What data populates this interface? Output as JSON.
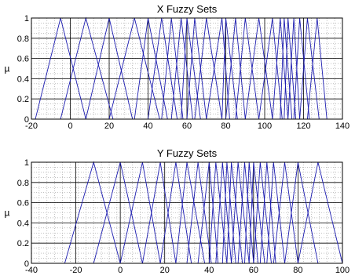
{
  "chart_data": [
    {
      "type": "line",
      "title": "X Fuzzy Sets",
      "ylabel": "µ",
      "xlim": [
        -20,
        140
      ],
      "ylim": [
        0,
        1
      ],
      "xticks": [
        "-20",
        "0",
        "20",
        "40",
        "60",
        "80",
        "100",
        "120",
        "140"
      ],
      "yticks": [
        "0",
        "0.2",
        "0.4",
        "0.6",
        "0.8",
        "1"
      ],
      "grid": "major solid, minor dotted",
      "line_color": "#1c1cb0",
      "series_description": "triangular membership functions, each given as [left foot, peak, right foot]",
      "triangles": [
        [
          -18,
          -5,
          8
        ],
        [
          -5,
          8,
          22
        ],
        [
          8,
          20,
          32
        ],
        [
          20,
          33,
          46
        ],
        [
          33,
          40,
          50
        ],
        [
          40,
          47,
          55
        ],
        [
          47,
          52,
          58
        ],
        [
          52,
          57,
          63
        ],
        [
          57,
          60,
          67
        ],
        [
          60,
          64,
          70
        ],
        [
          64,
          70,
          78
        ],
        [
          70,
          78,
          82
        ],
        [
          78,
          80,
          86
        ],
        [
          80,
          85,
          90
        ],
        [
          85,
          90,
          97
        ],
        [
          90,
          97,
          104
        ],
        [
          97,
          104,
          109
        ],
        [
          104,
          108,
          112
        ],
        [
          108,
          110,
          114
        ],
        [
          110,
          112,
          116
        ],
        [
          112,
          115,
          118
        ],
        [
          115,
          118,
          123
        ],
        [
          118,
          122,
          128
        ],
        [
          122,
          127,
          132
        ]
      ]
    },
    {
      "type": "line",
      "title": "Y Fuzzy Sets",
      "ylabel": "µ",
      "xlim": [
        -40,
        100
      ],
      "ylim": [
        0,
        1
      ],
      "xticks": [
        "-40",
        "-20",
        "0",
        "20",
        "40",
        "60",
        "80",
        "100"
      ],
      "yticks": [
        "0",
        "0.2",
        "0.4",
        "0.6",
        "0.8",
        "1"
      ],
      "grid": "major solid, minor dotted",
      "line_color": "#1c1cb0",
      "series_description": "triangular membership functions, each given as [left foot, peak, right foot]",
      "triangles": [
        [
          -25,
          -12,
          0
        ],
        [
          -12,
          0,
          10
        ],
        [
          0,
          10,
          18
        ],
        [
          10,
          18,
          25
        ],
        [
          18,
          25,
          32
        ],
        [
          25,
          30,
          38
        ],
        [
          30,
          35,
          41
        ],
        [
          35,
          40,
          44
        ],
        [
          40,
          43,
          48
        ],
        [
          43,
          46,
          50
        ],
        [
          46,
          48,
          52
        ],
        [
          48,
          50,
          55
        ],
        [
          50,
          53,
          58
        ],
        [
          53,
          56,
          60
        ],
        [
          56,
          58,
          62
        ],
        [
          58,
          60,
          65
        ],
        [
          60,
          63,
          68
        ],
        [
          63,
          66,
          70
        ],
        [
          66,
          69,
          74
        ],
        [
          69,
          74,
          80
        ],
        [
          74,
          80,
          89
        ],
        [
          80,
          89,
          100
        ]
      ]
    }
  ]
}
